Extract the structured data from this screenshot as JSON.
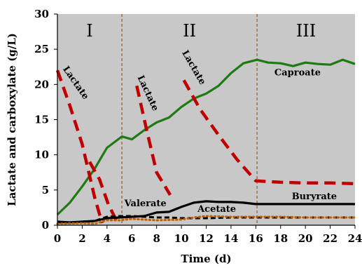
{
  "chart_data": {
    "type": "line",
    "title": "",
    "xlabel": "Time (d)",
    "ylabel": "Lactate and carboxylate (g/L)",
    "xlim": [
      0,
      24
    ],
    "ylim": [
      0,
      30
    ],
    "xticks": [
      0,
      2,
      4,
      6,
      8,
      10,
      12,
      14,
      16,
      18,
      20,
      22,
      24
    ],
    "yticks": [
      0,
      5,
      10,
      15,
      20,
      25,
      30
    ],
    "background_color": "#c8c8c8",
    "phases": [
      {
        "label": "I",
        "start": 0,
        "end": 5.2
      },
      {
        "label": "II",
        "start": 5.2,
        "end": 16.1
      },
      {
        "label": "III",
        "start": 16.1,
        "end": 24
      }
    ],
    "series": [
      {
        "name": "Caproate",
        "color": "#1e7a12",
        "style": "solid",
        "points": [
          [
            0,
            1.5
          ],
          [
            1,
            3.2
          ],
          [
            2,
            5.5
          ],
          [
            3,
            8.0
          ],
          [
            4,
            11.0
          ],
          [
            5.2,
            12.6
          ],
          [
            6,
            12.2
          ],
          [
            7,
            13.5
          ],
          [
            8,
            14.6
          ],
          [
            9,
            15.3
          ],
          [
            10,
            16.8
          ],
          [
            11,
            18.0
          ],
          [
            12,
            18.7
          ],
          [
            13,
            19.8
          ],
          [
            14,
            21.6
          ],
          [
            15,
            23.0
          ],
          [
            16.1,
            23.5
          ],
          [
            17,
            23.1
          ],
          [
            18,
            23.0
          ],
          [
            19,
            22.6
          ],
          [
            20,
            23.1
          ],
          [
            21,
            22.9
          ],
          [
            22,
            22.8
          ],
          [
            23,
            23.5
          ],
          [
            24,
            22.9
          ]
        ]
      },
      {
        "name": "Lactate",
        "color": "#c00000",
        "style": "dashed",
        "segments": [
          [
            [
              0,
              22
            ],
            [
              1,
              17
            ],
            [
              2,
              11.5
            ],
            [
              3,
              4
            ],
            [
              3.6,
              0.3
            ]
          ],
          [
            [
              2.6,
              9
            ],
            [
              3.4,
              6.5
            ],
            [
              4.1,
              3
            ],
            [
              4.8,
              0.5
            ]
          ],
          [
            [
              6.4,
              19.8
            ],
            [
              7.2,
              13.5
            ],
            [
              8,
              7.5
            ],
            [
              9.1,
              4.3
            ]
          ],
          [
            [
              10.2,
              20.6
            ],
            [
              11.5,
              16.5
            ],
            [
              13,
              12.8
            ],
            [
              14.5,
              9.3
            ],
            [
              16,
              6.3
            ],
            [
              18,
              6.1
            ],
            [
              20,
              6.0
            ],
            [
              22,
              6.0
            ],
            [
              24,
              5.9
            ]
          ]
        ]
      },
      {
        "name": "Buryrate",
        "color": "#000000",
        "style": "solid",
        "points": [
          [
            0,
            0.5
          ],
          [
            1,
            0.4
          ],
          [
            2,
            0.5
          ],
          [
            3,
            0.6
          ],
          [
            4,
            1.0
          ],
          [
            5,
            1.1
          ],
          [
            6,
            1.2
          ],
          [
            7,
            1.3
          ],
          [
            8,
            1.8
          ],
          [
            9,
            1.9
          ],
          [
            10,
            2.6
          ],
          [
            11,
            3.2
          ],
          [
            12,
            3.4
          ],
          [
            13,
            3.3
          ],
          [
            14,
            3.3
          ],
          [
            15,
            3.2
          ],
          [
            16,
            3.0
          ],
          [
            18,
            3.0
          ],
          [
            20,
            3.0
          ],
          [
            22,
            3.0
          ],
          [
            24,
            3.0
          ]
        ]
      },
      {
        "name": "Valerate",
        "color": "#000000",
        "style": "dashed",
        "points": [
          [
            0,
            0.4
          ],
          [
            1,
            0.4
          ],
          [
            2,
            0.5
          ],
          [
            3,
            0.6
          ],
          [
            4,
            1.2
          ],
          [
            5,
            1.3
          ],
          [
            6,
            1.3
          ],
          [
            7,
            1.2
          ],
          [
            8,
            1.1
          ],
          [
            9,
            1.1
          ],
          [
            10,
            1.0
          ],
          [
            12,
            1.0
          ],
          [
            14,
            1.1
          ],
          [
            16,
            1.1
          ],
          [
            18,
            1.1
          ],
          [
            20,
            1.1
          ],
          [
            22,
            1.1
          ],
          [
            24,
            1.1
          ]
        ]
      },
      {
        "name": "Acetate",
        "color": "#c06000",
        "style": "dotted",
        "points": [
          [
            0,
            0.2
          ],
          [
            2,
            0.3
          ],
          [
            3,
            0.2
          ],
          [
            4,
            0.7
          ],
          [
            5,
            0.7
          ],
          [
            6,
            0.9
          ],
          [
            8,
            0.7
          ],
          [
            10,
            0.8
          ],
          [
            11,
            1.1
          ],
          [
            12,
            1.3
          ],
          [
            14,
            1.2
          ],
          [
            16,
            1.2
          ],
          [
            18,
            1.2
          ],
          [
            20,
            1.1
          ],
          [
            22,
            1.1
          ],
          [
            24,
            1.1
          ]
        ]
      }
    ],
    "annotations": [
      {
        "text": "Caproate",
        "x": 17.5,
        "y": 21.3,
        "rotate": 0
      },
      {
        "text": "Lactate",
        "x": 1.3,
        "y": 20.0,
        "rotate": 55
      },
      {
        "text": "Lactate",
        "x": 7.1,
        "y": 18.6,
        "rotate": 65
      },
      {
        "text": "Lactate",
        "x": 10.8,
        "y": 22.2,
        "rotate": 60
      },
      {
        "text": "Valerate",
        "x": 5.4,
        "y": 2.7,
        "rotate": 0
      },
      {
        "text": "Acetate",
        "x": 11.3,
        "y": 1.9,
        "rotate": 0
      },
      {
        "text": "Buryrate",
        "x": 18.9,
        "y": 3.7,
        "rotate": 0
      }
    ]
  }
}
